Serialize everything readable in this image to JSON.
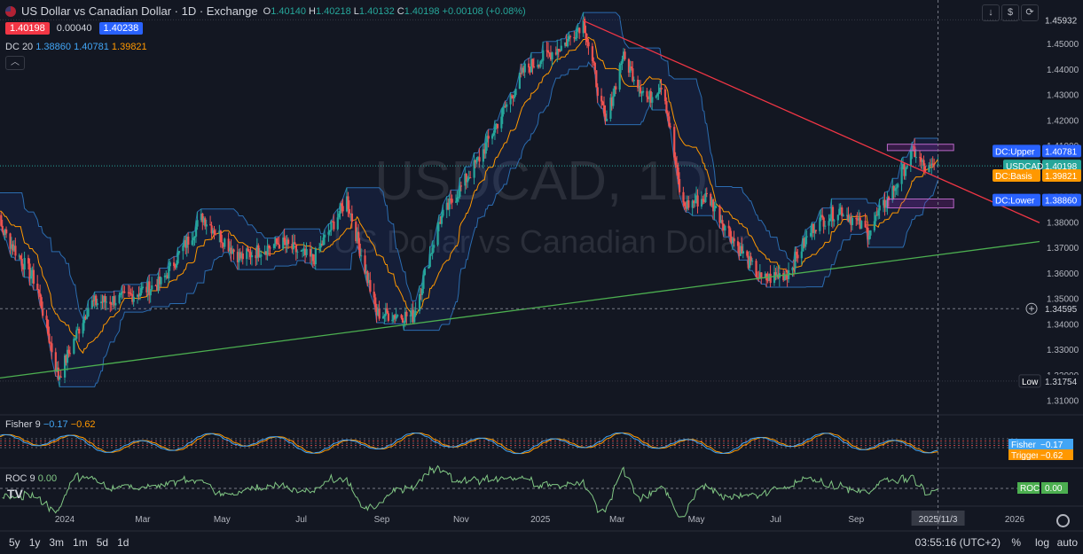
{
  "header": {
    "title": "US Dollar vs Canadian Dollar · 1D · Exchange",
    "o_label": "O",
    "o_value": "1.40140",
    "h_label": "H",
    "h_value": "1.40218",
    "l_label": "L",
    "l_value": "1.40132",
    "c_label": "C",
    "c_value": "1.40198",
    "change": "+0.00108 (+0.08%)",
    "sell_price": "1.40198",
    "spread": "0.00040",
    "buy_price": "1.40238",
    "collapse_icon": "chevron-up-icon"
  },
  "indicators": {
    "dc_label": "DC 20",
    "dc_lower": "1.38860",
    "dc_upper": "1.40781",
    "dc_basis": "1.39821",
    "fisher_label": "Fisher 9",
    "fisher_value": "−0.17",
    "trigger_value": "−0.62",
    "roc_label": "ROC 9",
    "roc_value": "0.00"
  },
  "watermark": {
    "symbol": "USDCAD, 1D",
    "name": "US Dollar vs Canadian Dollar"
  },
  "toolbar": {
    "icons": [
      "download-icon",
      "dollar-icon",
      "refresh-icon"
    ]
  },
  "bottom": {
    "timeframes": [
      "5y",
      "1y",
      "3m",
      "1m",
      "5d",
      "1d"
    ],
    "clock": "03:55:16 (UTC+2)",
    "percent": "%",
    "log": "log",
    "auto": "auto"
  },
  "colors": {
    "background": "#131722",
    "up": "#26a69a",
    "down": "#ef5350",
    "dc_band": "#2b6cb0",
    "dc_fill": "rgba(41,98,255,0.10)",
    "dc_basis": "#ff9800",
    "resistance": "#f23645",
    "support": "#4caf50",
    "fisher": "#42a5f5",
    "trigger": "#ff9800",
    "roc": "#81c784"
  },
  "chart_data": {
    "type": "candlestick",
    "symbol": "USDCAD",
    "timeframe": "1D",
    "y_axis_ticks": [
      "1.45000",
      "1.44000",
      "1.43000",
      "1.42000",
      "1.41000",
      "1.40000",
      "1.39000",
      "1.38000",
      "1.37000",
      "1.36000",
      "1.35000",
      "1.34000",
      "1.33000",
      "1.32000",
      "1.31000"
    ],
    "ylim": [
      1.306,
      1.4612
    ],
    "x_axis_labels": [
      "2024",
      "Mar",
      "May",
      "Jul",
      "Sep",
      "Nov",
      "2025",
      "Mar",
      "May",
      "Jul",
      "Sep",
      "2025/11/3",
      "2026"
    ],
    "x_label_dates": [
      "2024-01-01",
      "2024-03-01",
      "2024-05-01",
      "2024-07-01",
      "2024-09-01",
      "2024-11-01",
      "2025-01-01",
      "2025-03-01",
      "2025-05-01",
      "2025-07-01",
      "2025-09-01",
      "2025-11-03",
      "2026-01-01"
    ],
    "crosshair_date": "2025-11-03",
    "close_path": [
      {
        "date": "2023-11-01",
        "v": 1.388
      },
      {
        "date": "2023-11-20",
        "v": 1.372
      },
      {
        "date": "2023-12-10",
        "v": 1.356
      },
      {
        "date": "2023-12-27",
        "v": 1.319
      },
      {
        "date": "2024-01-20",
        "v": 1.348
      },
      {
        "date": "2024-02-15",
        "v": 1.35
      },
      {
        "date": "2024-03-15",
        "v": 1.356
      },
      {
        "date": "2024-04-16",
        "v": 1.382
      },
      {
        "date": "2024-05-15",
        "v": 1.366
      },
      {
        "date": "2024-06-15",
        "v": 1.372
      },
      {
        "date": "2024-07-10",
        "v": 1.365
      },
      {
        "date": "2024-08-05",
        "v": 1.389
      },
      {
        "date": "2024-08-28",
        "v": 1.344
      },
      {
        "date": "2024-09-25",
        "v": 1.343
      },
      {
        "date": "2024-10-15",
        "v": 1.38
      },
      {
        "date": "2024-11-15",
        "v": 1.405
      },
      {
        "date": "2024-12-20",
        "v": 1.44
      },
      {
        "date": "2025-01-20",
        "v": 1.45
      },
      {
        "date": "2025-02-03",
        "v": 1.459
      },
      {
        "date": "2025-02-20",
        "v": 1.418
      },
      {
        "date": "2025-03-05",
        "v": 1.445
      },
      {
        "date": "2025-03-25",
        "v": 1.428
      },
      {
        "date": "2025-04-05",
        "v": 1.435
      },
      {
        "date": "2025-04-20",
        "v": 1.386
      },
      {
        "date": "2025-05-10",
        "v": 1.39
      },
      {
        "date": "2025-06-01",
        "v": 1.371
      },
      {
        "date": "2025-06-20",
        "v": 1.357
      },
      {
        "date": "2025-07-10",
        "v": 1.36
      },
      {
        "date": "2025-07-31",
        "v": 1.379
      },
      {
        "date": "2025-08-20",
        "v": 1.385
      },
      {
        "date": "2025-09-10",
        "v": 1.376
      },
      {
        "date": "2025-10-01",
        "v": 1.394
      },
      {
        "date": "2025-10-15",
        "v": 1.408
      },
      {
        "date": "2025-10-25",
        "v": 1.4
      },
      {
        "date": "2025-11-03",
        "v": 1.402
      }
    ],
    "series": [
      {
        "name": "DC:Upper",
        "last": 1.40781
      },
      {
        "name": "DC:Basis",
        "last": 1.39821
      },
      {
        "name": "DC:Lower",
        "last": 1.3886
      },
      {
        "name": "USDCAD",
        "last": 1.40198
      }
    ],
    "trendlines": [
      {
        "role": "resistance",
        "points": [
          {
            "date": "2025-02-03",
            "v": 1.459
          },
          {
            "date": "2026-01-01",
            "v": 1.384
          }
        ]
      },
      {
        "role": "support",
        "points": [
          {
            "date": "2023-11-01",
            "v": 1.318
          },
          {
            "date": "2026-01-01",
            "v": 1.371
          }
        ]
      }
    ],
    "zones": [
      {
        "role": "upper-zone",
        "dates": [
          "2025-09-25",
          "2025-11-15"
        ],
        "values": [
          1.408,
          1.4105
        ]
      },
      {
        "role": "lower-zone",
        "dates": [
          "2025-09-25",
          "2025-11-15"
        ],
        "values": [
          1.3855,
          1.389
        ]
      }
    ],
    "price_labels": [
      {
        "label": "",
        "value": "1.45932",
        "price": 1.45932,
        "kind": "high"
      },
      {
        "label": "DC:Upper",
        "value": "1.40781",
        "price": 1.40781,
        "kind": "dcupper"
      },
      {
        "label": "USDCAD",
        "value": "1.40198",
        "price": 1.40198,
        "kind": "price"
      },
      {
        "label": "DC:Basis",
        "value": "1.39821",
        "price": 1.39821,
        "kind": "dcbasis"
      },
      {
        "label": "DC:Lower",
        "value": "1.38860",
        "price": 1.3886,
        "kind": "dclower"
      },
      {
        "label": "",
        "value": "1.34595",
        "price": 1.34595,
        "kind": "crosshair"
      },
      {
        "label": "Low",
        "value": "1.31754",
        "price": 1.31754,
        "kind": "low"
      }
    ],
    "fisher": {
      "fisher": -0.17,
      "trigger": -0.62,
      "labels": [
        {
          "label": "Fisher",
          "value": "−0.17"
        },
        {
          "label": "Trigger",
          "value": "−0.62"
        }
      ]
    },
    "roc": {
      "value": 0.0,
      "labels": [
        {
          "label": "ROC",
          "value": "0.00"
        }
      ]
    }
  }
}
